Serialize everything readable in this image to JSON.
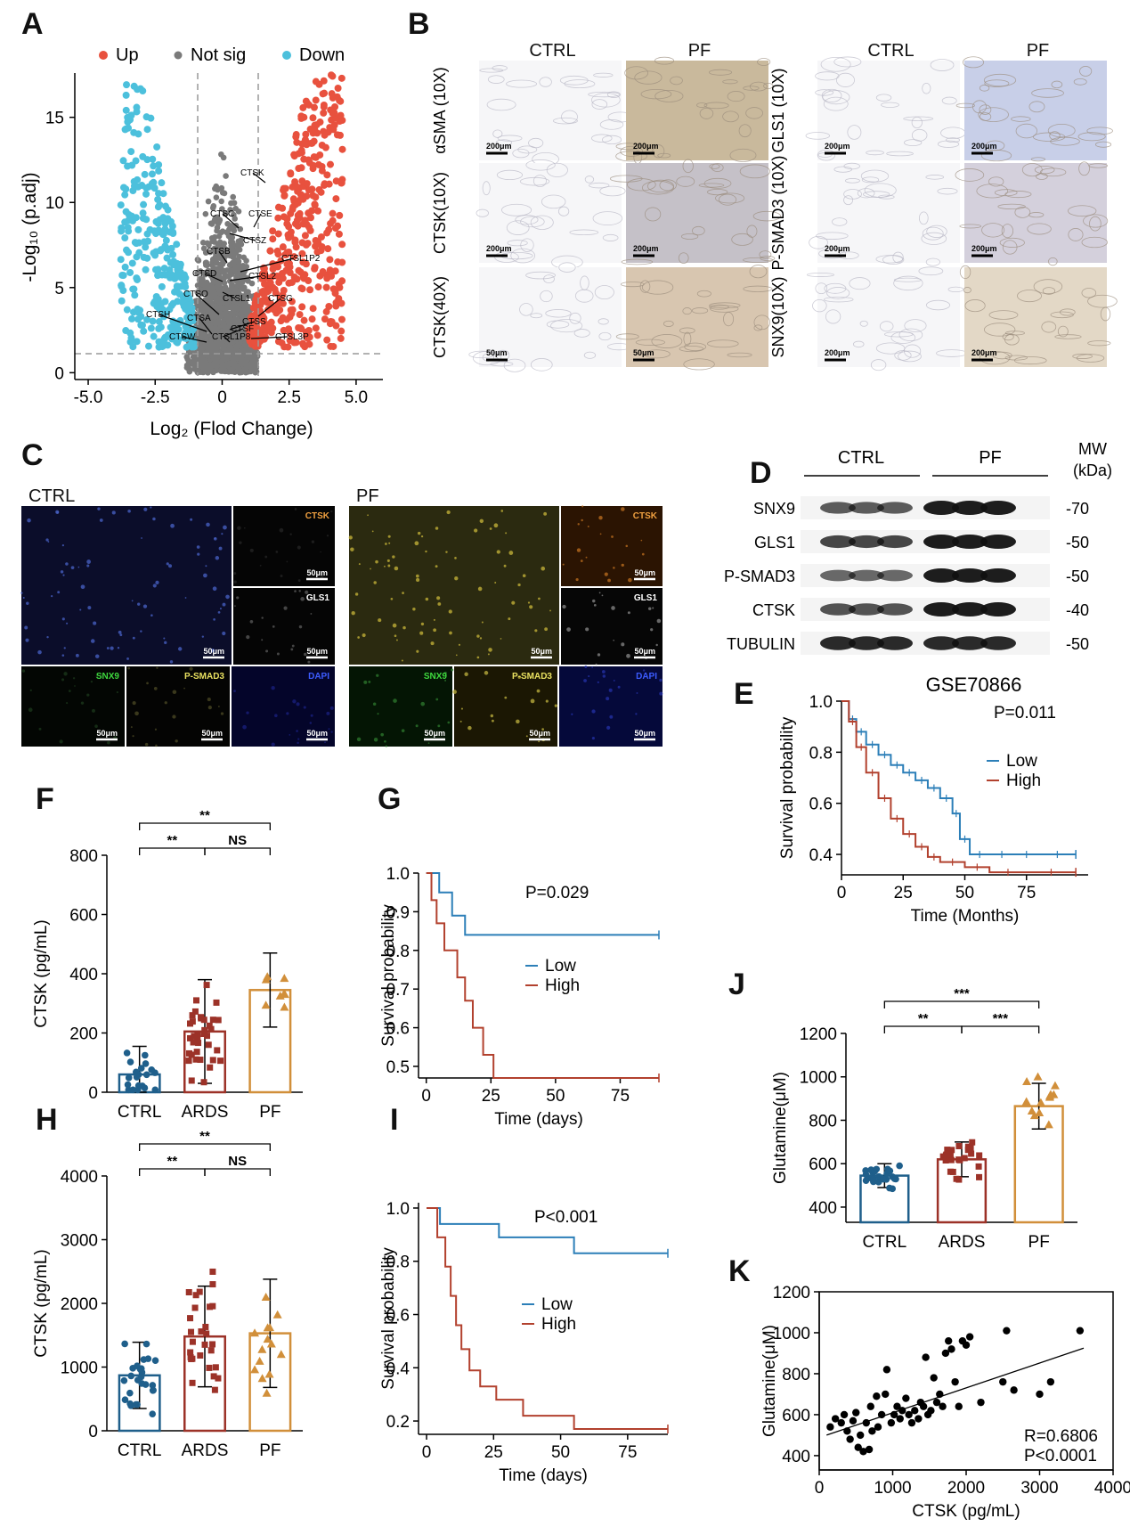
{
  "panels": {
    "A": "A",
    "B": "B",
    "C": "C",
    "D": "D",
    "E": "E",
    "F": "F",
    "G": "G",
    "H": "H",
    "I": "I",
    "J": "J",
    "K": "K"
  },
  "volcano": {
    "legend": {
      "up": "Up",
      "notsig": "Not sig",
      "down": "Down"
    },
    "colors": {
      "up": "#e8513e",
      "notsig": "#7a7a7a",
      "down": "#4cc0dc"
    },
    "xlabel": "Log₂ (Flod Change)",
    "ylabel": "-Log₁₀ (p.adj)",
    "xticks": [
      "-5.0",
      "-2.5",
      "0",
      "2.5",
      "5.0"
    ],
    "yticks": [
      "0",
      "5",
      "10",
      "15"
    ],
    "genes": [
      "CTSK",
      "CTSC",
      "CTSE",
      "CTSZ",
      "CTSB",
      "CTSL1P2",
      "CTSD",
      "CTSL2",
      "CTSL1",
      "CTSO",
      "CTSG",
      "CTSH",
      "CTSA",
      "CTSS",
      "CTSF",
      "CTSW",
      "CTSL1P8",
      "CTSL3P"
    ]
  },
  "ihc": {
    "cols_left": [
      "CTRL",
      "PF"
    ],
    "cols_right": [
      "CTRL",
      "PF"
    ],
    "rows_left": [
      "αSMA (10X)",
      "CTSK(10X)",
      "CTSK(40X)"
    ],
    "rows_right": [
      "GLS1 (10X)",
      "P-SMAD3 (10X)",
      "SNX9(10X)"
    ],
    "scalebars_left": [
      [
        "200μm",
        "200μm"
      ],
      [
        "200μm",
        "200μm"
      ],
      [
        "50μm",
        "50μm"
      ]
    ],
    "scalebars_right": [
      [
        "200μm",
        "200μm"
      ],
      [
        "200μm",
        "200μm"
      ],
      [
        "200μm",
        "200μm"
      ]
    ]
  },
  "if_panel": {
    "group_ctrl": "CTRL",
    "group_pf": "PF",
    "channels": {
      "ctsk": "CTSK",
      "gls1": "GLS1",
      "snx9": "SNX9",
      "psmad3": "P-SMAD3",
      "dapi": "DAPI"
    },
    "scale": "50μm"
  },
  "western": {
    "group_ctrl": "CTRL",
    "group_pf": "PF",
    "mw_header": "MW\n(kDa)",
    "proteins": [
      {
        "name": "SNX9",
        "mw": "-70"
      },
      {
        "name": "GLS1",
        "mw": "-50"
      },
      {
        "name": "P-SMAD3",
        "mw": "-50"
      },
      {
        "name": "CTSK",
        "mw": "-40"
      },
      {
        "name": "TUBULIN",
        "mw": "-50"
      }
    ]
  },
  "chart_data": [
    {
      "id": "E",
      "type": "line",
      "title": "GSE70866",
      "xlabel": "Time (Months)",
      "ylabel": "Survival  probability",
      "xticks": [
        "0",
        "25",
        "50",
        "75"
      ],
      "yticks": [
        "0.4",
        "0.6",
        "0.8",
        "1.0"
      ],
      "xlim": [
        0,
        100
      ],
      "ylim": [
        0.32,
        1.0
      ],
      "pvalue": "P=0.011",
      "series": [
        {
          "name": "Low",
          "color": "#2c7fb8",
          "x": [
            0,
            3,
            6,
            10,
            15,
            20,
            25,
            30,
            35,
            40,
            45,
            48,
            52,
            60,
            70,
            80,
            95
          ],
          "y": [
            1.0,
            0.93,
            0.88,
            0.83,
            0.79,
            0.75,
            0.72,
            0.69,
            0.66,
            0.62,
            0.56,
            0.46,
            0.4,
            0.4,
            0.4,
            0.4,
            0.4
          ]
        },
        {
          "name": "High",
          "color": "#b2412e",
          "x": [
            0,
            3,
            6,
            10,
            15,
            20,
            25,
            30,
            35,
            40,
            50,
            60,
            75,
            95
          ],
          "y": [
            1.0,
            0.92,
            0.82,
            0.72,
            0.62,
            0.54,
            0.48,
            0.43,
            0.39,
            0.37,
            0.35,
            0.33,
            0.33,
            0.33
          ]
        }
      ]
    },
    {
      "id": "F",
      "type": "bar",
      "categories": [
        "CTRL",
        "ARDS",
        "PF"
      ],
      "values": [
        60,
        205,
        345
      ],
      "sd": [
        95,
        175,
        125
      ],
      "ylabel": "CTSK (pg/mL)",
      "yticks": [
        "0",
        "200",
        "400",
        "600",
        "800"
      ],
      "ylim": [
        0,
        800
      ],
      "colors": [
        "#1f5f8b",
        "#9c3228",
        "#d18f3a"
      ],
      "significance": [
        {
          "pair": [
            "CTRL",
            "ARDS"
          ],
          "label": "**"
        },
        {
          "pair": [
            "ARDS",
            "PF"
          ],
          "label": "NS"
        },
        {
          "pair": [
            "CTRL",
            "PF"
          ],
          "label": "**"
        }
      ]
    },
    {
      "id": "G",
      "type": "line",
      "xlabel": "Time (days)",
      "ylabel": "Survival  probability",
      "xticks": [
        "0",
        "25",
        "50",
        "75"
      ],
      "yticks": [
        "0.5",
        "0.6",
        "0.7",
        "0.8",
        "0.9",
        "1.0"
      ],
      "xlim": [
        -3,
        90
      ],
      "ylim": [
        0.47,
        1.0
      ],
      "pvalue": "P=0.029",
      "series": [
        {
          "name": "Low",
          "color": "#2c7fb8",
          "x": [
            0,
            5,
            10,
            15,
            90
          ],
          "y": [
            1.0,
            0.95,
            0.89,
            0.84,
            0.84
          ]
        },
        {
          "name": "High",
          "color": "#b2412e",
          "x": [
            0,
            2,
            4,
            7,
            12,
            15,
            18,
            22,
            26,
            90
          ],
          "y": [
            1.0,
            0.93,
            0.87,
            0.8,
            0.73,
            0.67,
            0.6,
            0.53,
            0.47,
            0.47
          ]
        }
      ]
    },
    {
      "id": "H",
      "type": "bar",
      "categories": [
        "CTRL",
        "ARDS",
        "PF"
      ],
      "values": [
        870,
        1480,
        1530
      ],
      "sd": [
        520,
        790,
        850
      ],
      "ylabel": "CTSK (pg/mL)",
      "yticks": [
        "0",
        "1000",
        "2000",
        "3000",
        "4000"
      ],
      "ylim": [
        0,
        4000
      ],
      "colors": [
        "#1f5f8b",
        "#9c3228",
        "#d18f3a"
      ],
      "significance": [
        {
          "pair": [
            "CTRL",
            "ARDS"
          ],
          "label": "**"
        },
        {
          "pair": [
            "ARDS",
            "PF"
          ],
          "label": "NS"
        },
        {
          "pair": [
            "CTRL",
            "PF"
          ],
          "label": "**"
        }
      ]
    },
    {
      "id": "I",
      "type": "line",
      "xlabel": "Time (days)",
      "ylabel": "Survival  probability",
      "xticks": [
        "0",
        "25",
        "50",
        "75"
      ],
      "yticks": [
        "0.2",
        "0.4",
        "0.6",
        "0.8",
        "1.0"
      ],
      "xlim": [
        -3,
        90
      ],
      "ylim": [
        0.15,
        1.02
      ],
      "pvalue": "P<0.001",
      "series": [
        {
          "name": "Low",
          "color": "#2c7fb8",
          "x": [
            0,
            5,
            27,
            55,
            90
          ],
          "y": [
            1.0,
            0.94,
            0.89,
            0.83,
            0.83
          ]
        },
        {
          "name": "High",
          "color": "#b2412e",
          "x": [
            0,
            4,
            7,
            9,
            11,
            13,
            16,
            20,
            26,
            36,
            45,
            55,
            90
          ],
          "y": [
            1.0,
            0.89,
            0.78,
            0.67,
            0.56,
            0.47,
            0.39,
            0.33,
            0.28,
            0.22,
            0.22,
            0.17,
            0.17
          ]
        }
      ]
    },
    {
      "id": "J",
      "type": "bar",
      "categories": [
        "CTRL",
        "ARDS",
        "PF"
      ],
      "values": [
        545,
        620,
        865
      ],
      "sd": [
        55,
        80,
        105
      ],
      "ylabel": "Glutamine(μM)",
      "yticks": [
        "400",
        "600",
        "800",
        "1000",
        "1200"
      ],
      "ylim": [
        330,
        1200
      ],
      "colors": [
        "#1f5f8b",
        "#9c3228",
        "#d18f3a"
      ],
      "significance": [
        {
          "pair": [
            "CTRL",
            "ARDS"
          ],
          "label": "**"
        },
        {
          "pair": [
            "ARDS",
            "PF"
          ],
          "label": "***"
        },
        {
          "pair": [
            "CTRL",
            "PF"
          ],
          "label": "***"
        }
      ]
    },
    {
      "id": "K",
      "type": "scatter",
      "xlabel": "CTSK (pg/mL)",
      "ylabel": "Glutamine(μM)",
      "xticks": [
        "0",
        "1000",
        "2000",
        "3000",
        "4000"
      ],
      "yticks": [
        "400",
        "600",
        "800",
        "1000",
        "1200"
      ],
      "xlim": [
        0,
        4000
      ],
      "ylim": [
        330,
        1200
      ],
      "stat_r": "R=0.6806",
      "stat_p": "P<0.0001",
      "fit": [
        [
          100,
          500
        ],
        [
          3600,
          925
        ]
      ],
      "points": [
        [
          150,
          540
        ],
        [
          220,
          580
        ],
        [
          300,
          560
        ],
        [
          340,
          600
        ],
        [
          380,
          520
        ],
        [
          420,
          480
        ],
        [
          460,
          570
        ],
        [
          500,
          610
        ],
        [
          530,
          440
        ],
        [
          560,
          500
        ],
        [
          600,
          420
        ],
        [
          640,
          560
        ],
        [
          680,
          430
        ],
        [
          700,
          640
        ],
        [
          720,
          520
        ],
        [
          780,
          690
        ],
        [
          800,
          540
        ],
        [
          850,
          600
        ],
        [
          900,
          700
        ],
        [
          920,
          820
        ],
        [
          980,
          560
        ],
        [
          1020,
          600
        ],
        [
          1060,
          640
        ],
        [
          1100,
          580
        ],
        [
          1130,
          620
        ],
        [
          1180,
          680
        ],
        [
          1220,
          600
        ],
        [
          1260,
          560
        ],
        [
          1300,
          620
        ],
        [
          1350,
          580
        ],
        [
          1380,
          660
        ],
        [
          1420,
          640
        ],
        [
          1450,
          880
        ],
        [
          1480,
          600
        ],
        [
          1520,
          620
        ],
        [
          1560,
          780
        ],
        [
          1600,
          660
        ],
        [
          1640,
          700
        ],
        [
          1680,
          640
        ],
        [
          1720,
          900
        ],
        [
          1760,
          960
        ],
        [
          1800,
          920
        ],
        [
          1850,
          760
        ],
        [
          1900,
          640
        ],
        [
          1950,
          960
        ],
        [
          2000,
          940
        ],
        [
          2050,
          980
        ],
        [
          2200,
          660
        ],
        [
          2500,
          760
        ],
        [
          2550,
          1010
        ],
        [
          2650,
          720
        ],
        [
          3000,
          700
        ],
        [
          3150,
          760
        ],
        [
          3550,
          1010
        ]
      ]
    }
  ]
}
